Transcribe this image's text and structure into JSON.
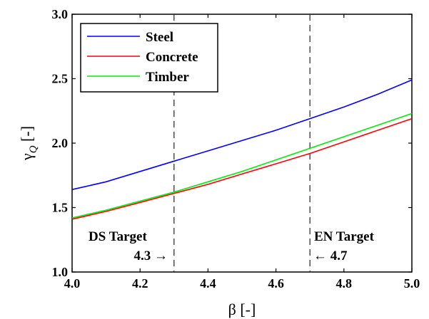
{
  "chart_data": {
    "type": "line",
    "xlabel": "β [-]",
    "ylabel": "γ_Q [-]",
    "xlim": [
      4.0,
      5.0
    ],
    "ylim": [
      1.0,
      3.0
    ],
    "xticks": [
      "4.0",
      "4.2",
      "4.4",
      "4.6",
      "4.8",
      "5.0"
    ],
    "yticks": [
      "1.0",
      "1.5",
      "2.0",
      "2.5",
      "3.0"
    ],
    "legend_position": "top-left",
    "grid": false,
    "series": [
      {
        "name": "Steel",
        "color": "#0000ff",
        "x": [
          4.0,
          4.1,
          4.2,
          4.3,
          4.4,
          4.5,
          4.6,
          4.7,
          4.8,
          4.9,
          5.0
        ],
        "y": [
          1.64,
          1.7,
          1.78,
          1.86,
          1.94,
          2.02,
          2.1,
          2.19,
          2.28,
          2.38,
          2.49
        ]
      },
      {
        "name": "Concrete",
        "color": "#ff0000",
        "x": [
          4.0,
          4.1,
          4.2,
          4.3,
          4.4,
          4.5,
          4.6,
          4.7,
          4.8,
          4.9,
          5.0
        ],
        "y": [
          1.41,
          1.47,
          1.54,
          1.61,
          1.68,
          1.76,
          1.84,
          1.92,
          2.01,
          2.1,
          2.19
        ]
      },
      {
        "name": "Timber",
        "color": "#00ee00",
        "x": [
          4.0,
          4.1,
          4.2,
          4.3,
          4.4,
          4.5,
          4.6,
          4.7,
          4.8,
          4.9,
          5.0
        ],
        "y": [
          1.42,
          1.48,
          1.55,
          1.62,
          1.7,
          1.78,
          1.87,
          1.96,
          2.05,
          2.14,
          2.23
        ]
      }
    ],
    "vlines": [
      {
        "x": 4.3,
        "style": "dashed"
      },
      {
        "x": 4.7,
        "style": "dashed"
      }
    ],
    "annotations": [
      {
        "id": "ds",
        "line1": "DS Target",
        "line2": "4.3 →"
      },
      {
        "id": "en",
        "line1": "EN Target",
        "line2": "← 4.7"
      }
    ]
  }
}
